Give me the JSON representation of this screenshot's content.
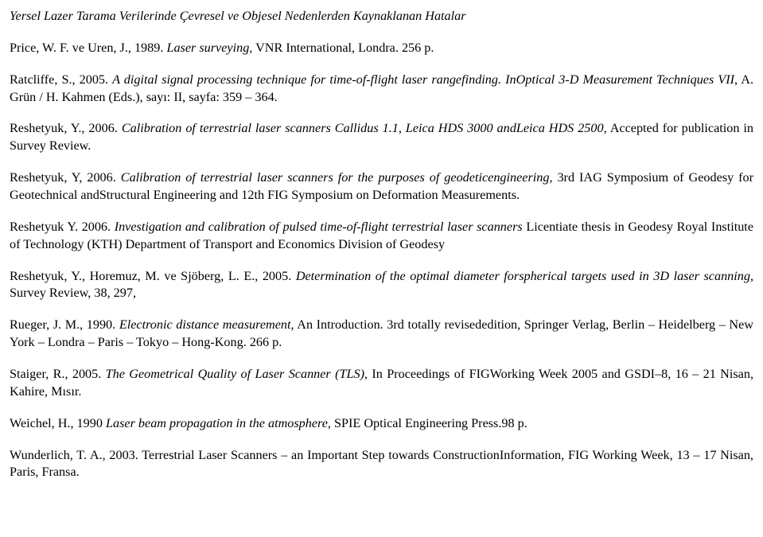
{
  "title": "Yersel Lazer Tarama Verilerinde Çevresel ve Objesel Nedenlerden Kaynaklanan Hatalar",
  "refs": [
    {
      "author": "Price, W. F. ve Uren, J., 1989. ",
      "ititle": "Laser surveying",
      "rest": ", VNR International, Londra. 256 p."
    },
    {
      "author": "Ratcliffe, S., 2005. ",
      "ititle": "A digital signal processing technique for time-of-flight laser rangefinding. InOptical 3-D Measurement Techniques VII",
      "rest": ", A. Grün / H. Kahmen (Eds.), sayı: II, sayfa: 359 – 364."
    },
    {
      "author": "Reshetyuk, Y., 2006. ",
      "ititle": "Calibration of terrestrial laser scanners Callidus 1.1, Leica HDS 3000 andLeica HDS 2500",
      "rest": ", Accepted for publication in Survey Review."
    },
    {
      "author": "Reshetyuk, Y, 2006. ",
      "ititle": "Calibration of terrestrial laser scanners for the purposes of geodeticengineering",
      "rest": ", 3rd IAG Symposium of Geodesy for Geotechnical andStructural Engineering and 12th FIG Symposium on Deformation Measurements."
    },
    {
      "author": "Reshetyuk Y. 2006. ",
      "ititle": "Investigation and calibration of pulsed time-of-flight terrestrial laser scanners",
      "rest": " Licentiate thesis in Geodesy Royal Institute of Technology (KTH) Department of Transport and Economics Division of Geodesy"
    },
    {
      "author": "Reshetyuk, Y., Horemuz, M. ve Sjöberg, L. E., 2005. ",
      "ititle": "Determination of the optimal diameter forspherical targets used in 3D laser scanning",
      "rest": ", Survey Review, 38, 297,"
    },
    {
      "author": "Rueger, J. M., 1990. ",
      "ititle": "Electronic distance measurement",
      "rest": ", An Introduction. 3rd totally revisededition, Springer Verlag, Berlin – Heidelberg – New York – Londra – Paris – Tokyo – Hong-Kong. 266 p."
    },
    {
      "author": "Staiger, R., 2005. ",
      "ititle": "The Geometrical Quality of Laser Scanner (TLS)",
      "rest": ", In Proceedings of FIGWorking Week 2005 and GSDI–8, 16 – 21 Nisan, Kahire, Mısır."
    },
    {
      "author": "Weichel, H., 1990 ",
      "ititle": "Laser beam propagation in the atmosphere",
      "rest": ", SPIE Optical Engineering Press.98 p."
    },
    {
      "author": "Wunderlich, T. A., 2003. ",
      "ititle": "",
      "rest": "Terrestrial Laser Scanners – an Important Step towards ConstructionInformation, FIG Working Week, 13 – 17 Nisan, Paris, Fransa."
    }
  ]
}
